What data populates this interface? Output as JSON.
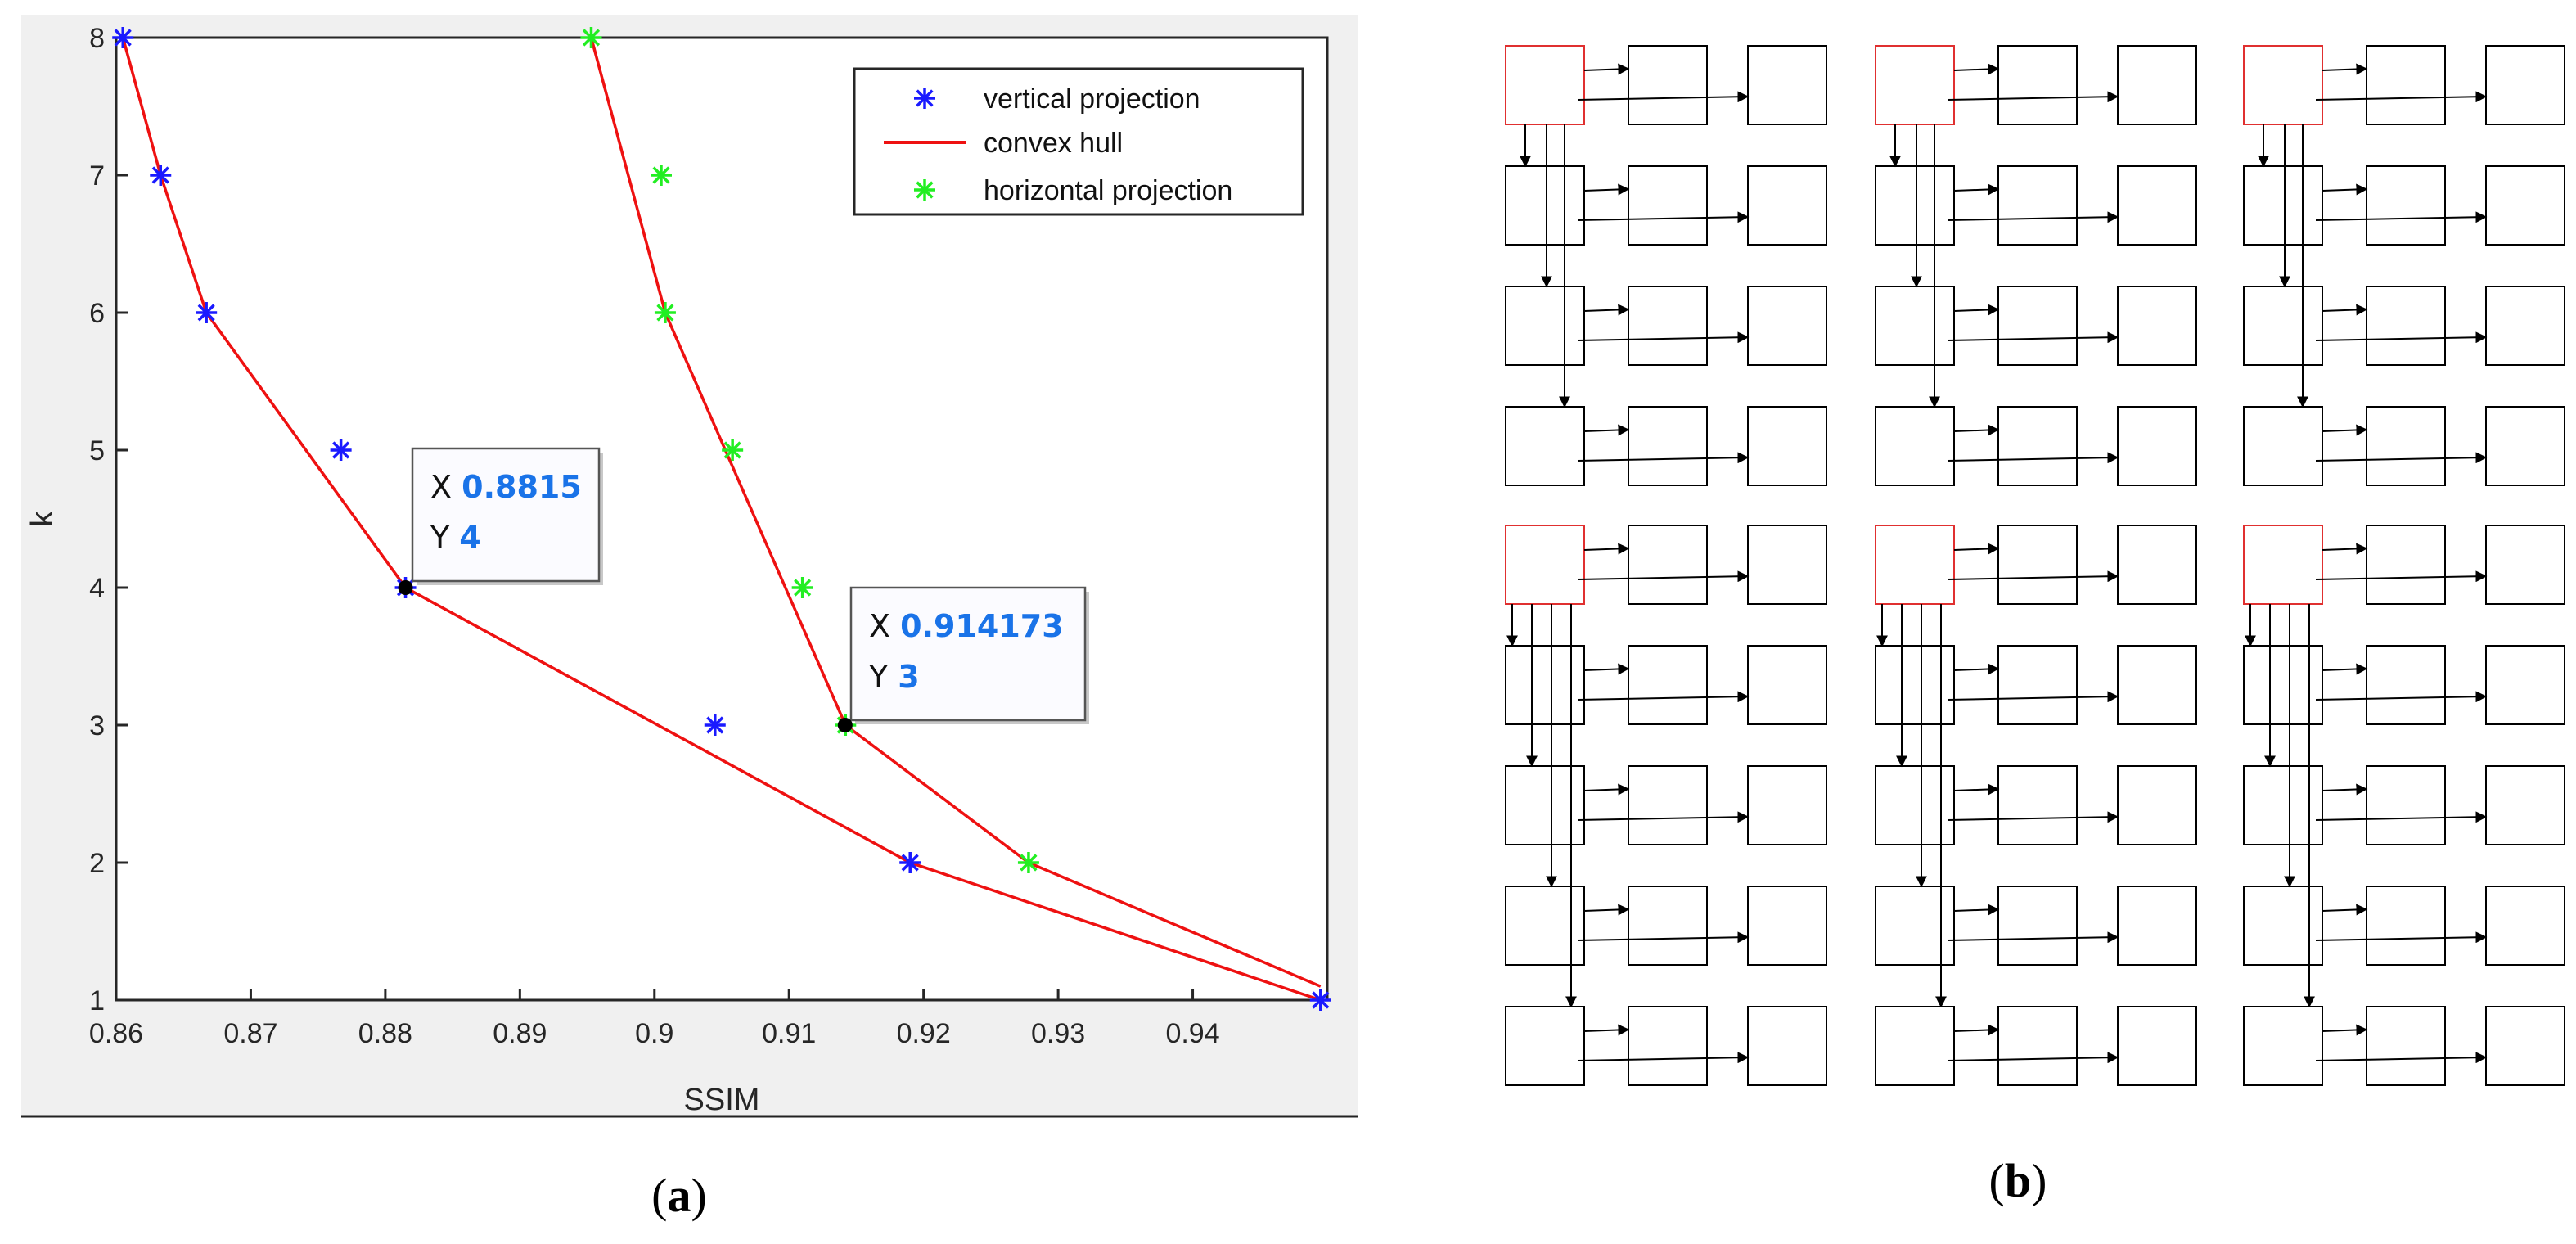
{
  "chart_data": {
    "type": "scatter",
    "xlabel": "SSIM",
    "ylabel": "k",
    "xlim": [
      0.86,
      0.95
    ],
    "ylim": [
      1,
      8
    ],
    "xticks": [
      "0.86",
      "0.87",
      "0.88",
      "0.89",
      "0.9",
      "0.91",
      "0.92",
      "0.93",
      "0.94"
    ],
    "yticks": [
      "1",
      "2",
      "3",
      "4",
      "5",
      "6",
      "7",
      "8"
    ],
    "series": [
      {
        "name": "vertical projection",
        "marker": "*",
        "color": "#1a1aff",
        "points": [
          {
            "x": 0.8605,
            "y": 8
          },
          {
            "x": 0.8633,
            "y": 7
          },
          {
            "x": 0.8667,
            "y": 6
          },
          {
            "x": 0.8767,
            "y": 5
          },
          {
            "x": 0.8815,
            "y": 4
          },
          {
            "x": 0.9045,
            "y": 3
          },
          {
            "x": 0.919,
            "y": 2
          },
          {
            "x": 0.9495,
            "y": 1
          }
        ]
      },
      {
        "name": "convex hull",
        "marker": "line",
        "color": "#ee1111",
        "lines": [
          [
            {
              "x": 0.8605,
              "y": 8
            },
            {
              "x": 0.8633,
              "y": 7
            },
            {
              "x": 0.8667,
              "y": 6
            },
            {
              "x": 0.8815,
              "y": 4
            },
            {
              "x": 0.919,
              "y": 2
            },
            {
              "x": 0.9495,
              "y": 1
            }
          ],
          [
            {
              "x": 0.8953,
              "y": 8
            },
            {
              "x": 0.9008,
              "y": 6
            },
            {
              "x": 0.9142,
              "y": 3
            },
            {
              "x": 0.9278,
              "y": 2
            },
            {
              "x": 0.9495,
              "y": 1.1
            }
          ]
        ]
      },
      {
        "name": "horizontal projection",
        "marker": "*",
        "color": "#22ee22",
        "points": [
          {
            "x": 0.8953,
            "y": 8
          },
          {
            "x": 0.9005,
            "y": 7
          },
          {
            "x": 0.9008,
            "y": 6
          },
          {
            "x": 0.9058,
            "y": 5
          },
          {
            "x": 0.911,
            "y": 4
          },
          {
            "x": 0.9142,
            "y": 3
          },
          {
            "x": 0.9278,
            "y": 2
          }
        ]
      }
    ],
    "annotations": [
      {
        "x_label": "X",
        "x_value": "0.8815",
        "y_label": "Y",
        "y_value": "4",
        "x": 0.8815,
        "y": 4
      },
      {
        "x_label": "X",
        "x_value": "0.914173",
        "y_label": "Y",
        "y_value": "3",
        "x": 0.914173,
        "y": 3
      }
    ],
    "legend": {
      "position": "top-right",
      "items": [
        "vertical projection",
        "convex hull",
        "horizontal projection"
      ]
    }
  },
  "diagram": {
    "panels": 6,
    "rows_per_panel": 4,
    "columns_per_row": 3,
    "head_color": "#e03030"
  },
  "captions": {
    "a": {
      "open": "(",
      "letter": "a",
      "close": ")"
    },
    "b": {
      "open": "(",
      "letter": "b",
      "close": ")"
    }
  },
  "colors": {
    "tooltip_value": "#1a73e8",
    "axis_area_bg": "#f0f0f0"
  }
}
